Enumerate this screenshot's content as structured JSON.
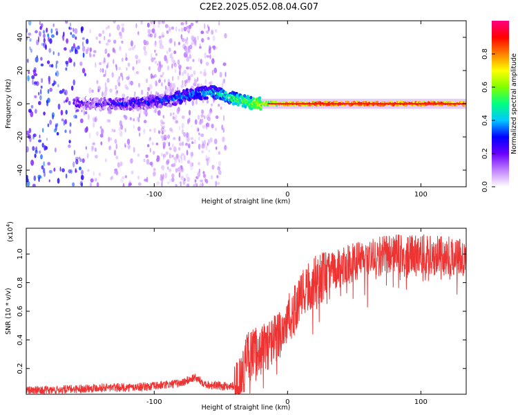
{
  "title": "C2E2.2025.052.08.04.G07",
  "chart_data": [
    {
      "type": "heatmap",
      "xlabel": "Height of straight line (km)",
      "ylabel": "Frequency (Hz)",
      "xlim": [
        -196,
        134
      ],
      "ylim": [
        -50,
        50
      ],
      "xticks": [
        -100,
        0,
        100
      ],
      "yticks": [
        -40,
        -20,
        0,
        20,
        40
      ],
      "colorbar": {
        "label": "Normalized spectral amplitude",
        "range": [
          0,
          1
        ],
        "ticks": [
          "0.0",
          "0.2",
          "0.4",
          "0.6",
          "0.8"
        ],
        "colors": [
          "#ffffff",
          "#c080ff",
          "#6a00ff",
          "#0000ff",
          "#00c8ff",
          "#00ff80",
          "#80ff00",
          "#ffff00",
          "#ff8000",
          "#ff0000",
          "#ff0080"
        ]
      },
      "description_points": [
        {
          "x": -155,
          "freq": 0,
          "amp": 0.2
        },
        {
          "x": -120,
          "freq": 0,
          "amp": 0.25
        },
        {
          "x": -90,
          "freq": 2,
          "amp": 0.3
        },
        {
          "x": -70,
          "freq": 6,
          "amp": 0.35
        },
        {
          "x": -55,
          "freq": 7,
          "amp": 0.4
        },
        {
          "x": -40,
          "freq": 3,
          "amp": 0.5
        },
        {
          "x": -25,
          "freq": 0,
          "amp": 0.6
        },
        {
          "x": 0,
          "freq": 0,
          "amp": 0.85
        },
        {
          "x": 50,
          "freq": 0,
          "amp": 0.9
        },
        {
          "x": 100,
          "freq": 0,
          "amp": 0.9
        },
        {
          "x": 134,
          "freq": 0,
          "amp": 0.85
        }
      ]
    },
    {
      "type": "line",
      "xlabel": "Height of straight line (km)",
      "ylabel": "SNR (10 * v/v)",
      "yunit": "(x10",
      "yunit_exp": "4",
      "xlim": [
        -196,
        134
      ],
      "ylim": [
        0.02,
        1.18
      ],
      "xticks": [
        -100,
        0,
        100
      ],
      "yticks": [
        "0.2",
        "0.4",
        "0.6",
        "0.8",
        "1.0"
      ],
      "color": "#ee3333",
      "series": [
        {
          "x": [
            -196,
            -180,
            -160,
            -140,
            -120,
            -100,
            -80,
            -70,
            -60,
            -50,
            -40,
            -35,
            -30,
            -25,
            -20,
            -15,
            -10,
            -5,
            0,
            5,
            10,
            15,
            20,
            25,
            30,
            40,
            50,
            60,
            70,
            80,
            90,
            100,
            110,
            120,
            134
          ],
          "y": [
            0.05,
            0.05,
            0.06,
            0.07,
            0.07,
            0.08,
            0.1,
            0.14,
            0.09,
            0.08,
            0.08,
            0.15,
            0.3,
            0.33,
            0.35,
            0.38,
            0.42,
            0.48,
            0.55,
            0.62,
            0.7,
            0.78,
            0.82,
            0.85,
            0.88,
            0.92,
            0.96,
            0.98,
            1.0,
            1.02,
            1.0,
            1.02,
            1.0,
            1.0,
            1.0
          ]
        }
      ]
    }
  ]
}
